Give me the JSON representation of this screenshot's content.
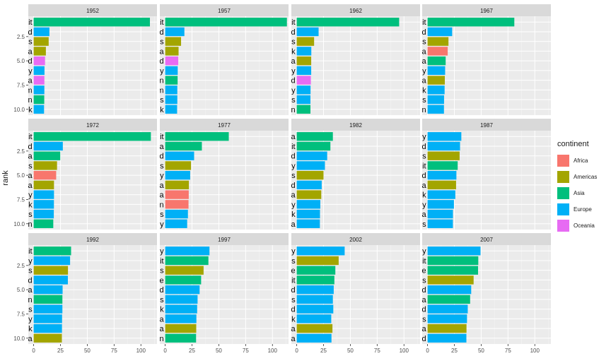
{
  "chart_data": {
    "type": "bar",
    "orientation": "horizontal",
    "facet_by": "year",
    "ylabel": "rank",
    "x_ticks": [
      0,
      25,
      50,
      75,
      100
    ],
    "y_ticks": [
      "2.5",
      "5.0",
      "7.5",
      "10.0"
    ],
    "xlim": [
      -5,
      115
    ],
    "grid": true,
    "legend": {
      "title": "continent",
      "position": "right",
      "entries": [
        {
          "label": "Africa",
          "color": "#F8766D"
        },
        {
          "label": "Americas",
          "color": "#A3A500"
        },
        {
          "label": "Asia",
          "color": "#00BF7D"
        },
        {
          "label": "Europe",
          "color": "#00B0F6"
        },
        {
          "label": "Oceania",
          "color": "#E76BF3"
        }
      ]
    },
    "panels": [
      {
        "year": "1952",
        "bars": [
          {
            "country": "Kuwait",
            "continent": "Asia",
            "value": 108.4
          },
          {
            "country": "Switzerland",
            "continent": "Europe",
            "value": 14.7
          },
          {
            "country": "United States",
            "continent": "Americas",
            "value": 14
          },
          {
            "country": "Canada",
            "continent": "Americas",
            "value": 11.4
          },
          {
            "country": "New Zealand",
            "continent": "Oceania",
            "value": 10.6
          },
          {
            "country": "Norway",
            "continent": "Europe",
            "value": 10.1
          },
          {
            "country": "Australia",
            "continent": "Oceania",
            "value": 10
          },
          {
            "country": "United Kingdom",
            "continent": "Europe",
            "value": 9.98
          },
          {
            "country": "Bahrain",
            "continent": "Asia",
            "value": 9.87
          },
          {
            "country": "Denmark",
            "continent": "Europe",
            "value": 9.69
          }
        ]
      },
      {
        "year": "1957",
        "bars": [
          {
            "country": "Kuwait",
            "continent": "Asia",
            "value": 113.5
          },
          {
            "country": "Switzerland",
            "continent": "Europe",
            "value": 17.9
          },
          {
            "country": "United States",
            "continent": "Americas",
            "value": 14.8
          },
          {
            "country": "Canada",
            "continent": "Americas",
            "value": 12.5
          },
          {
            "country": "New Zealand",
            "continent": "Oceania",
            "value": 12.2
          },
          {
            "country": "Norway",
            "continent": "Europe",
            "value": 11.7
          },
          {
            "country": "Bahrain",
            "continent": "Asia",
            "value": 11.6
          },
          {
            "country": "United Kingdom",
            "continent": "Europe",
            "value": 11.3
          },
          {
            "country": "Netherlands",
            "continent": "Europe",
            "value": 11.3
          },
          {
            "country": "Denmark",
            "continent": "Europe",
            "value": 11.1
          }
        ]
      },
      {
        "year": "1962",
        "bars": [
          {
            "country": "Kuwait",
            "continent": "Asia",
            "value": 95.5
          },
          {
            "country": "Switzerland",
            "continent": "Europe",
            "value": 20.4
          },
          {
            "country": "United States",
            "continent": "Americas",
            "value": 16.2
          },
          {
            "country": "Denmark",
            "continent": "Europe",
            "value": 13.6
          },
          {
            "country": "Canada",
            "continent": "Americas",
            "value": 13.5
          },
          {
            "country": "Norway",
            "continent": "Europe",
            "value": 13.5
          },
          {
            "country": "New Zealand",
            "continent": "Oceania",
            "value": 13.2
          },
          {
            "country": "Germany",
            "continent": "Europe",
            "value": 12.9
          },
          {
            "country": "Netherlands",
            "continent": "Europe",
            "value": 12.8
          },
          {
            "country": "Bahrain",
            "continent": "Asia",
            "value": 12.8
          }
        ]
      },
      {
        "year": "1967",
        "bars": [
          {
            "country": "Kuwait",
            "continent": "Asia",
            "value": 80.9
          },
          {
            "country": "Switzerland",
            "continent": "Europe",
            "value": 22.97
          },
          {
            "country": "United States",
            "continent": "Americas",
            "value": 19.5
          },
          {
            "country": "Libya",
            "continent": "Africa",
            "value": 18.8
          },
          {
            "country": "Saudi Arabia",
            "continent": "Asia",
            "value": 16.9
          },
          {
            "country": "Norway",
            "continent": "Europe",
            "value": 16.4
          },
          {
            "country": "Canada",
            "continent": "Americas",
            "value": 16.1
          },
          {
            "country": "Denmark",
            "continent": "Europe",
            "value": 15.9
          },
          {
            "country": "Netherlands",
            "continent": "Europe",
            "value": 15.4
          },
          {
            "country": "Sweden",
            "continent": "Europe",
            "value": 15.3
          }
        ]
      },
      {
        "year": "1972",
        "bars": [
          {
            "country": "Kuwait",
            "continent": "Asia",
            "value": 109.3
          },
          {
            "country": "Switzerland",
            "continent": "Europe",
            "value": 27.2
          },
          {
            "country": "Saudi Arabia",
            "continent": "Asia",
            "value": 24.8
          },
          {
            "country": "United States",
            "continent": "Americas",
            "value": 21.8
          },
          {
            "country": "Libya",
            "continent": "Africa",
            "value": 21
          },
          {
            "country": "Canada",
            "continent": "Americas",
            "value": 18.97
          },
          {
            "country": "Norway",
            "continent": "Europe",
            "value": 18.97
          },
          {
            "country": "Denmark",
            "continent": "Europe",
            "value": 18.9
          },
          {
            "country": "Netherlands",
            "continent": "Europe",
            "value": 18.8
          },
          {
            "country": "Bahrain",
            "continent": "Asia",
            "value": 18.3
          }
        ]
      },
      {
        "year": "1977",
        "bars": [
          {
            "country": "Kuwait",
            "continent": "Asia",
            "value": 59.3
          },
          {
            "country": "Saudi Arabia",
            "continent": "Asia",
            "value": 34.2
          },
          {
            "country": "Switzerland",
            "continent": "Europe",
            "value": 26.98
          },
          {
            "country": "United States",
            "continent": "Americas",
            "value": 24.1
          },
          {
            "country": "Norway",
            "continent": "Europe",
            "value": 23.3
          },
          {
            "country": "Canada",
            "continent": "Americas",
            "value": 22.1
          },
          {
            "country": "Libya",
            "continent": "Africa",
            "value": 21.95
          },
          {
            "country": "Gabon",
            "continent": "Africa",
            "value": 21.75
          },
          {
            "country": "Netherlands",
            "continent": "Europe",
            "value": 21.2
          },
          {
            "country": "Germany",
            "continent": "Europe",
            "value": 20.5
          }
        ]
      },
      {
        "year": "1982",
        "bars": [
          {
            "country": "Saudi Arabia",
            "continent": "Asia",
            "value": 33.7
          },
          {
            "country": "Kuwait",
            "continent": "Asia",
            "value": 31.4
          },
          {
            "country": "Switzerland",
            "continent": "Europe",
            "value": 28.4
          },
          {
            "country": "Norway",
            "continent": "Europe",
            "value": 26.3
          },
          {
            "country": "United States",
            "continent": "Americas",
            "value": 25
          },
          {
            "country": "Iceland",
            "continent": "Europe",
            "value": 23.3
          },
          {
            "country": "Canada",
            "continent": "Americas",
            "value": 22.9
          },
          {
            "country": "Germany",
            "continent": "Europe",
            "value": 22
          },
          {
            "country": "Denmark",
            "continent": "Europe",
            "value": 21.7
          },
          {
            "country": "Austria",
            "continent": "Europe",
            "value": 21.6
          }
        ]
      },
      {
        "year": "1987",
        "bars": [
          {
            "country": "Norway",
            "continent": "Europe",
            "value": 31.5
          },
          {
            "country": "Switzerland",
            "continent": "Europe",
            "value": 30.3
          },
          {
            "country": "United States",
            "continent": "Americas",
            "value": 29.9
          },
          {
            "country": "Kuwait",
            "continent": "Asia",
            "value": 28.1
          },
          {
            "country": "Iceland",
            "continent": "Europe",
            "value": 26.9
          },
          {
            "country": "Canada",
            "continent": "Americas",
            "value": 26.6
          },
          {
            "country": "Denmark",
            "continent": "Europe",
            "value": 25.9
          },
          {
            "country": "Germany",
            "continent": "Europe",
            "value": 24.6
          },
          {
            "country": "Austria",
            "continent": "Europe",
            "value": 23.7
          },
          {
            "country": "Netherlands",
            "continent": "Europe",
            "value": 23.65
          }
        ]
      },
      {
        "year": "1992",
        "bars": [
          {
            "country": "Kuwait",
            "continent": "Asia",
            "value": 34.9
          },
          {
            "country": "Norway",
            "continent": "Europe",
            "value": 33.97
          },
          {
            "country": "United States",
            "continent": "Americas",
            "value": 32
          },
          {
            "country": "Switzerland",
            "continent": "Europe",
            "value": 31.9
          },
          {
            "country": "Austria",
            "continent": "Europe",
            "value": 27
          },
          {
            "country": "Japan",
            "continent": "Asia",
            "value": 26.8
          },
          {
            "country": "Netherlands",
            "continent": "Europe",
            "value": 26.8
          },
          {
            "country": "Germany",
            "continent": "Europe",
            "value": 26.5
          },
          {
            "country": "Denmark",
            "continent": "Europe",
            "value": 26.4
          },
          {
            "country": "Canada",
            "continent": "Americas",
            "value": 26.3
          }
        ]
      },
      {
        "year": "1997",
        "bars": [
          {
            "country": "Norway",
            "continent": "Europe",
            "value": 41.3
          },
          {
            "country": "Kuwait",
            "continent": "Asia",
            "value": 40.3
          },
          {
            "country": "United States",
            "continent": "Americas",
            "value": 35.8
          },
          {
            "country": "Singapore",
            "continent": "Asia",
            "value": 33.5
          },
          {
            "country": "Switzerland",
            "continent": "Europe",
            "value": 32.1
          },
          {
            "country": "Netherlands",
            "continent": "Europe",
            "value": 30.2
          },
          {
            "country": "Denmark",
            "continent": "Europe",
            "value": 29.8
          },
          {
            "country": "Austria",
            "continent": "Europe",
            "value": 29.1
          },
          {
            "country": "Canada",
            "continent": "Americas",
            "value": 28.95
          },
          {
            "country": "Japan",
            "continent": "Asia",
            "value": 28.8
          }
        ]
      },
      {
        "year": "2002",
        "bars": [
          {
            "country": "Norway",
            "continent": "Europe",
            "value": 44.7
          },
          {
            "country": "United States",
            "continent": "Americas",
            "value": 39.1
          },
          {
            "country": "Singapore",
            "continent": "Asia",
            "value": 36
          },
          {
            "country": "Kuwait",
            "continent": "Asia",
            "value": 35.1
          },
          {
            "country": "Switzerland",
            "continent": "Europe",
            "value": 34.5
          },
          {
            "country": "Netherlands",
            "continent": "Europe",
            "value": 33.7
          },
          {
            "country": "Ireland",
            "continent": "Europe",
            "value": 34.1
          },
          {
            "country": "Denmark",
            "continent": "Europe",
            "value": 32.2
          },
          {
            "country": "Canada",
            "continent": "Americas",
            "value": 33.3
          },
          {
            "country": "Austria",
            "continent": "Europe",
            "value": 32.4
          }
        ]
      },
      {
        "year": "2007",
        "bars": [
          {
            "country": "Norway",
            "continent": "Europe",
            "value": 49.4
          },
          {
            "country": "Kuwait",
            "continent": "Asia",
            "value": 47.3
          },
          {
            "country": "Singapore",
            "continent": "Asia",
            "value": 47.1
          },
          {
            "country": "United States",
            "continent": "Americas",
            "value": 42.95
          },
          {
            "country": "Ireland",
            "continent": "Europe",
            "value": 40.7
          },
          {
            "country": "Hong Kong, China",
            "continent": "Asia",
            "value": 39.7
          },
          {
            "country": "Switzerland",
            "continent": "Europe",
            "value": 37.5
          },
          {
            "country": "Netherlands",
            "continent": "Europe",
            "value": 36.8
          },
          {
            "country": "Canada",
            "continent": "Americas",
            "value": 36.3
          },
          {
            "country": "Iceland",
            "continent": "Europe",
            "value": 36.2
          }
        ]
      }
    ]
  }
}
